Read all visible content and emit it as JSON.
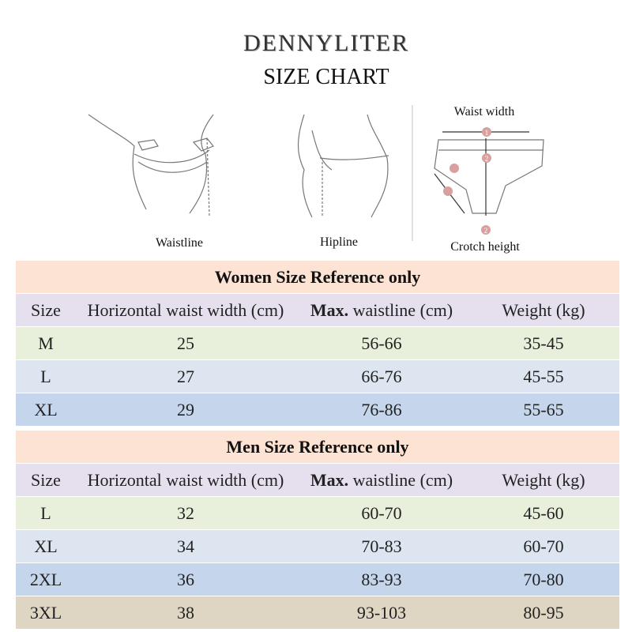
{
  "header": {
    "brand": "DENNYLITER",
    "title": "SIZE CHART"
  },
  "figures": {
    "waistline": "Waistline",
    "hipline": "Hipline",
    "waist_width": "Waist width",
    "crotch_height": "Crotch height",
    "markers": [
      "1",
      "2",
      "2"
    ]
  },
  "tables": [
    {
      "title": "Women Size Reference only",
      "columns": [
        "Size",
        "Horizontal waist width (cm)",
        {
          "bold": "Max.",
          "rest": "waistline (cm)"
        },
        "Weight (kg)"
      ],
      "rows": [
        [
          "M",
          "25",
          "56-66",
          "35-45"
        ],
        [
          "L",
          "27",
          "66-76",
          "45-55"
        ],
        [
          "XL",
          "29",
          "76-86",
          "55-65"
        ]
      ]
    },
    {
      "title": "Men Size Reference only",
      "columns": [
        "Size",
        "Horizontal waist width (cm)",
        {
          "bold": "Max.",
          "rest": "waistline (cm)"
        },
        "Weight (kg)"
      ],
      "rows": [
        [
          "L",
          "32",
          "60-70",
          "45-60"
        ],
        [
          "XL",
          "34",
          "70-83",
          "60-70"
        ],
        [
          "2XL",
          "36",
          "83-93",
          "70-80"
        ],
        [
          "3XL",
          "38",
          "93-103",
          "80-95"
        ]
      ]
    }
  ]
}
